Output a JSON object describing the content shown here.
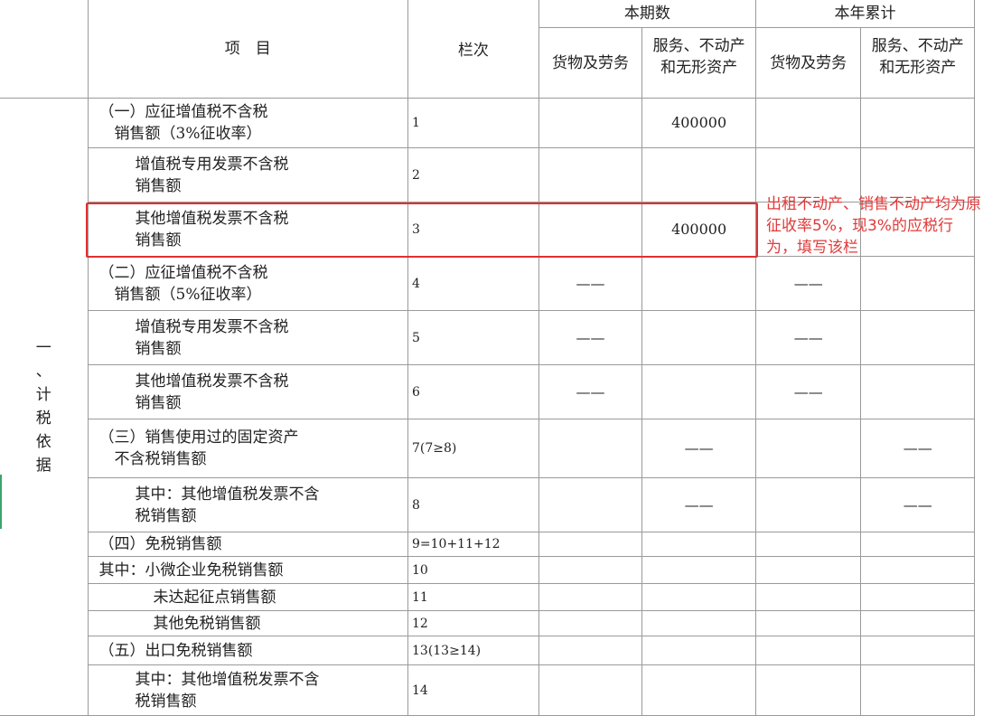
{
  "header": {
    "item": "项　目",
    "line_no": "栏次",
    "current_period": "本期数",
    "year_to_date": "本年累计",
    "goods": "货物及劳务",
    "services": "服务、不动产和无形资产"
  },
  "section": "一、计税依据",
  "rows": [
    {
      "item": "（一）应征增值税不含税\n　销售额（3%征收率）",
      "line": "1",
      "cur_goods": "",
      "cur_services": "400000",
      "ytd_goods": "",
      "ytd_services": ""
    },
    {
      "item": "增值税专用发票不含税\n销售额",
      "line": "2",
      "cur_goods": "",
      "cur_services": "",
      "ytd_goods": "",
      "ytd_services": ""
    },
    {
      "item": "其他增值税发票不含税\n销售额",
      "line": "3",
      "cur_goods": "",
      "cur_services": "400000",
      "ytd_goods": "",
      "ytd_services": ""
    },
    {
      "item": "（二）应征增值税不含税\n　销售额（5%征收率）",
      "line": "4",
      "cur_goods": "——",
      "cur_services": "",
      "ytd_goods": "——",
      "ytd_services": ""
    },
    {
      "item": "增值税专用发票不含税\n销售额",
      "line": "5",
      "cur_goods": "——",
      "cur_services": "",
      "ytd_goods": "——",
      "ytd_services": ""
    },
    {
      "item": "其他增值税发票不含税\n销售额",
      "line": "6",
      "cur_goods": "——",
      "cur_services": "",
      "ytd_goods": "——",
      "ytd_services": ""
    },
    {
      "item": "（三）销售使用过的固定资产\n　不含税销售额",
      "line": "7(7≥8)",
      "cur_goods": "",
      "cur_services": "——",
      "ytd_goods": "",
      "ytd_services": "——"
    },
    {
      "item": "其中：其他增值税发票不含\n税销售额",
      "line": "8",
      "cur_goods": "",
      "cur_services": "——",
      "ytd_goods": "",
      "ytd_services": "——"
    },
    {
      "item": "（四）免税销售额",
      "line": "9=10+11+12",
      "cur_goods": "",
      "cur_services": "",
      "ytd_goods": "",
      "ytd_services": ""
    },
    {
      "item": "其中：小微企业免税销售额",
      "line": "10",
      "cur_goods": "",
      "cur_services": "",
      "ytd_goods": "",
      "ytd_services": ""
    },
    {
      "item": "未达起征点销售额",
      "line": "11",
      "cur_goods": "",
      "cur_services": "",
      "ytd_goods": "",
      "ytd_services": ""
    },
    {
      "item": "其他免税销售额",
      "line": "12",
      "cur_goods": "",
      "cur_services": "",
      "ytd_goods": "",
      "ytd_services": ""
    },
    {
      "item": "（五）出口免税销售额",
      "line": "13(13≥14)",
      "cur_goods": "",
      "cur_services": "",
      "ytd_goods": "",
      "ytd_services": ""
    },
    {
      "item": "其中：其他增值税发票不含\n税销售额",
      "line": "14",
      "cur_goods": "",
      "cur_services": "",
      "ytd_goods": "",
      "ytd_services": ""
    }
  ],
  "annotation": "出租不动产、销售不动产均为原征收率5%，现3%的应税行为，填写该栏",
  "colors": {
    "highlight": "#e03030",
    "grid": "#9a9a9a"
  }
}
